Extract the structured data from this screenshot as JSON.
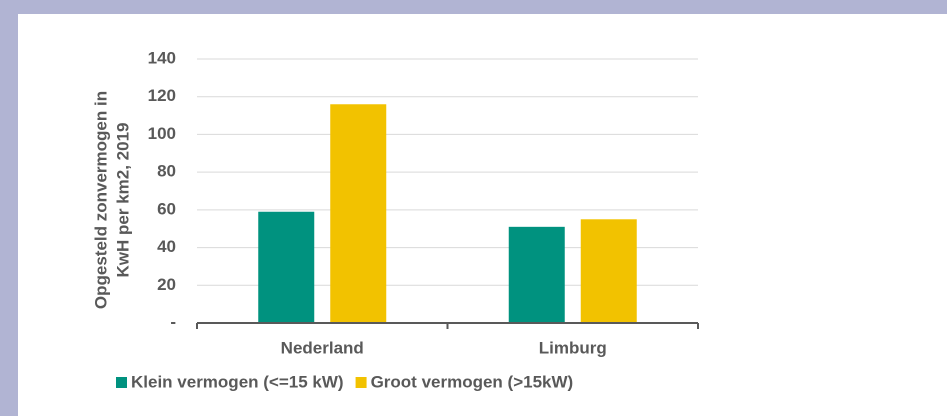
{
  "chart_data": {
    "type": "bar",
    "ylabel": [
      "Opgesteld zonvermogen in",
      "KwH per km2, 2019"
    ],
    "categories": [
      "Nederland",
      "Limburg"
    ],
    "series": [
      {
        "name": "Klein vermogen (<=15 kW)",
        "color": "#00927f",
        "values": [
          59,
          51
        ]
      },
      {
        "name": "Groot vermogen (>15kW)",
        "color": "#f2c200",
        "values": [
          116,
          55
        ]
      }
    ],
    "ylim": [
      0,
      140
    ],
    "yticks": [
      {
        "value": 0,
        "label": "-"
      },
      20,
      40,
      60,
      80,
      100,
      120,
      140
    ],
    "grid": true,
    "legend": "bottom"
  }
}
